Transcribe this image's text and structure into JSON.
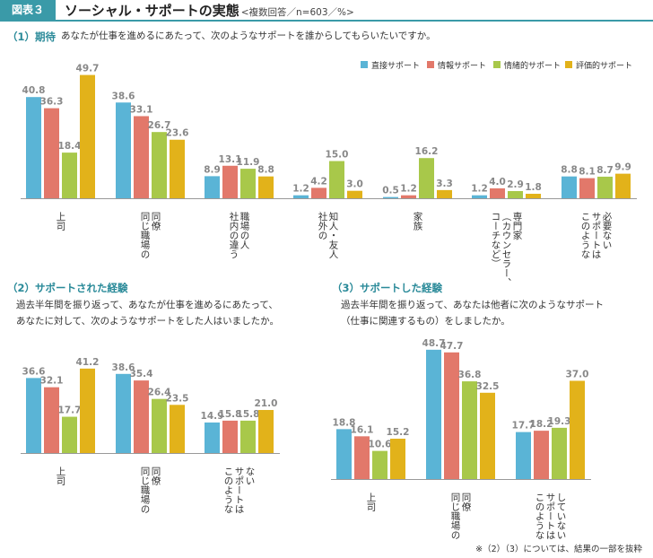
{
  "header": {
    "badge": "図表３",
    "title": "ソーシャル・サポートの実態",
    "subtitle": "<複数回答／n=603／%>"
  },
  "colors": {
    "accent": "#3a9aa8",
    "series": [
      "#5ab4d6",
      "#e2786a",
      "#a8c84a",
      "#e2b21a"
    ]
  },
  "legend": [
    "直接サポート",
    "情報サポート",
    "情緒的サポート",
    "評価的サポート"
  ],
  "sections": [
    {
      "title": "（1）期待",
      "question": [
        "あなたが仕事を進めるにあたって、次のようなサポートを誰からしてもらいたいですか。"
      ]
    },
    {
      "title": "（2）サポートされた経験",
      "question": [
        "過去半年間を振り返って、あなたが仕事を進めるにあたって、",
        "あなたに対して、次のようなサポートをした人はいましたか。"
      ]
    },
    {
      "title": "（3）サポートした経験",
      "question": [
        "過去半年間を振り返って、あなたは他者に次のようなサポート",
        "（仕事に関連するもの）をしましたか。"
      ]
    }
  ],
  "chart_data": [
    {
      "type": "bar",
      "title": "（1）期待",
      "series_names": [
        "直接サポート",
        "情報サポート",
        "情緒的サポート",
        "評価的サポート"
      ],
      "categories": [
        [
          "上司"
        ],
        [
          "同僚",
          "同じ職場の"
        ],
        [
          "職場の人",
          "社内の違う"
        ],
        [
          "知人・友人",
          "社外の"
        ],
        [
          "家族"
        ],
        [
          "専門家",
          "（カウンセラー、",
          "コーチなど）"
        ],
        [
          "必要ない",
          "サポートは",
          "このような"
        ]
      ],
      "values": [
        [
          40.8,
          36.3,
          18.4,
          49.7
        ],
        [
          38.6,
          33.1,
          26.7,
          23.6
        ],
        [
          8.9,
          13.1,
          11.9,
          8.8
        ],
        [
          1.2,
          4.2,
          15.0,
          3.0
        ],
        [
          0.5,
          1.2,
          16.2,
          3.3
        ],
        [
          1.2,
          4.0,
          2.9,
          1.8
        ],
        [
          8.8,
          8.1,
          8.7,
          9.9
        ]
      ],
      "labels": [
        [
          "40.8",
          "36.3",
          "18.4",
          "49.7"
        ],
        [
          "38.6",
          "33.1",
          "26.7",
          "23.6"
        ],
        [
          "8.9",
          "13.1",
          "11.9",
          "8.8"
        ],
        [
          "1.2",
          "4.2",
          "15.0",
          "3.0"
        ],
        [
          "0.5",
          "1.2",
          "16.2",
          "3.3"
        ],
        [
          "1.2",
          "4.0",
          "2.9",
          "1.8"
        ],
        [
          "8.8",
          "8.1",
          "8.7",
          "9.9"
        ]
      ],
      "ylim": [
        0,
        100
      ],
      "legend": "top-right",
      "grid": false
    },
    {
      "type": "bar",
      "title": "（2）サポートされた経験",
      "series_names": [
        "直接サポート",
        "情報サポート",
        "情緒的サポート",
        "評価的サポート"
      ],
      "categories": [
        [
          "上司"
        ],
        [
          "同僚",
          "同じ職場の"
        ],
        [
          "ない",
          "サポートは",
          "このような"
        ]
      ],
      "values": [
        [
          36.6,
          32.1,
          17.7,
          41.2
        ],
        [
          38.6,
          35.4,
          26.4,
          23.5
        ],
        [
          14.9,
          15.8,
          15.8,
          21.0
        ]
      ],
      "labels": [
        [
          "36.6",
          "32.1",
          "17.7",
          "41.2"
        ],
        [
          "38.6",
          "35.4",
          "26.4",
          "23.5"
        ],
        [
          "14.9",
          "15.8",
          "15.8",
          "21.0"
        ]
      ],
      "ylim": [
        0,
        100
      ],
      "grid": false
    },
    {
      "type": "bar",
      "title": "（3）サポートした経験",
      "series_names": [
        "直接サポート",
        "情報サポート",
        "情緒的サポート",
        "評価的サポート"
      ],
      "categories": [
        [
          "上司"
        ],
        [
          "同僚",
          "同じ職場の"
        ],
        [
          "していない",
          "サポートは",
          "このような"
        ]
      ],
      "values": [
        [
          18.8,
          16.1,
          10.6,
          15.2
        ],
        [
          48.7,
          47.7,
          36.8,
          32.5
        ],
        [
          17.7,
          18.2,
          19.3,
          37.0
        ]
      ],
      "labels": [
        [
          "18.8",
          "16.1",
          "10.6",
          "15.2"
        ],
        [
          "48.7",
          "47.7",
          "36.8",
          "32.5"
        ],
        [
          "17.7",
          "18.2",
          "19.3",
          "37.0"
        ]
      ],
      "ylim": [
        0,
        100
      ],
      "grid": false
    }
  ],
  "footnote": "※（2）（3）については、結果の一部を抜粋"
}
